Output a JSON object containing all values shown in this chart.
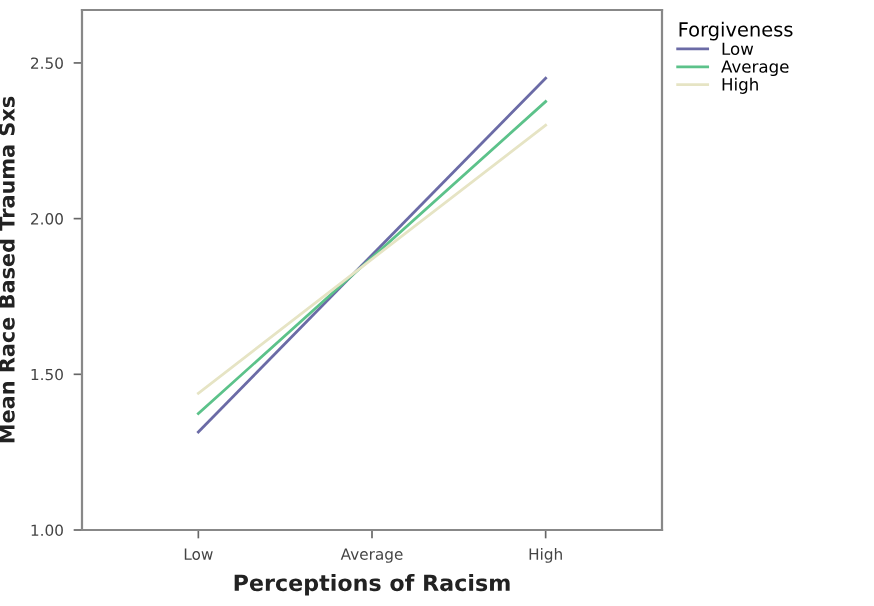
{
  "chart_data": {
    "type": "line",
    "xlabel": "Perceptions of Racism",
    "ylabel": "Mean Race Based Trauma Sxs",
    "legend_title": "Forgiveness",
    "categories": [
      "Low",
      "Average",
      "High"
    ],
    "series": [
      {
        "name": "Low",
        "color": "#6b6ba6",
        "values": [
          1.315,
          1.883,
          2.451
        ]
      },
      {
        "name": "Average",
        "color": "#5cc28a",
        "values": [
          1.374,
          1.875,
          2.376
        ]
      },
      {
        "name": "High",
        "color": "#e6e4c4",
        "values": [
          1.439,
          1.87,
          2.3
        ]
      }
    ],
    "ylim": [
      1.0,
      2.67
    ],
    "yticks": [
      {
        "value": 1.0,
        "label": "1.00"
      },
      {
        "value": 1.5,
        "label": "1.50"
      },
      {
        "value": 2.0,
        "label": "2.00"
      },
      {
        "value": 2.5,
        "label": "2.50"
      }
    ],
    "grid": false,
    "legend": "top right",
    "marker": "none",
    "line_style": "solid"
  }
}
